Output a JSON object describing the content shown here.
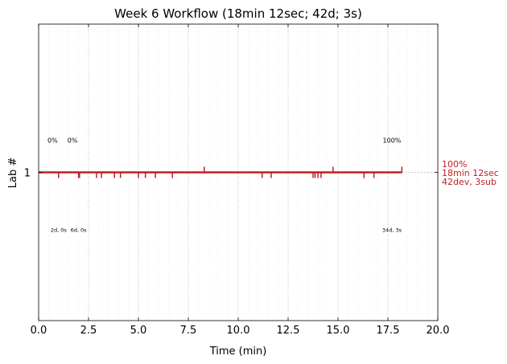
{
  "chart_data": {
    "type": "line",
    "title": "Week 6 Workflow (18min 12sec; 42d; 3s)",
    "xlabel": "Time (min)",
    "ylabel": "Lab #",
    "xlim": [
      0,
      20
    ],
    "ylim": [
      0,
      2
    ],
    "x_ticks": [
      0.0,
      2.5,
      5.0,
      7.5,
      10.0,
      12.5,
      15.0,
      17.5,
      20.0
    ],
    "x_tick_labels": [
      "0.0",
      "2.5",
      "5.0",
      "7.5",
      "10.0",
      "12.5",
      "15.0",
      "17.5",
      "20.0"
    ],
    "y_ticks": [
      1
    ],
    "y_tick_labels": [
      "1"
    ],
    "grid": "vertical dotted",
    "colors": {
      "series": "#c0201f",
      "grid_major": "#b0b0b0",
      "grid_minor": "#e6e6e6"
    },
    "series": [
      {
        "lab": 1,
        "start": 0.0,
        "end": 18.2,
        "dev_events": [
          1.0,
          2.0,
          2.05,
          2.9,
          3.15,
          3.8,
          4.1,
          5.0,
          5.35,
          5.85,
          6.7,
          11.2,
          11.65,
          13.75,
          13.85,
          14.0,
          14.15,
          16.3,
          16.8
        ],
        "submit_events": [
          8.3,
          14.75,
          18.2
        ]
      }
    ],
    "annotations": {
      "percent_labels": [
        {
          "x": 0.7,
          "text": "0%"
        },
        {
          "x": 1.7,
          "text": "0%"
        },
        {
          "x": 17.7,
          "text": "100%"
        }
      ],
      "count_labels": [
        {
          "x": 1.0,
          "text": "2d, 0s"
        },
        {
          "x": 2.0,
          "text": "6d, 0s"
        },
        {
          "x": 17.7,
          "text": "34d, 3s"
        }
      ],
      "side_summary": [
        "100%",
        "18min 12sec",
        "42dev, 3sub"
      ]
    }
  }
}
